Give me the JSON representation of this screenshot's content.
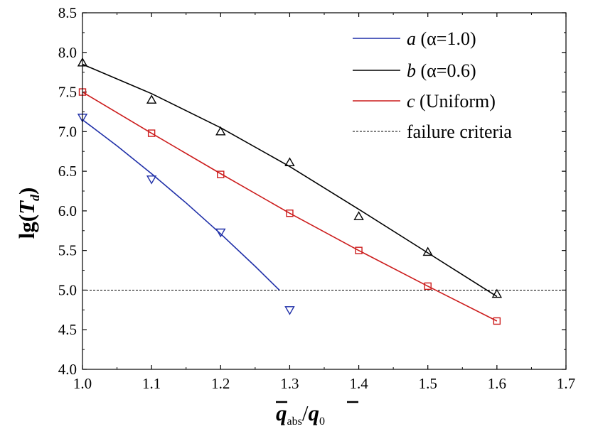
{
  "chart_data": {
    "type": "line",
    "xlabel": {
      "q": "q",
      "abs": "abs",
      "slash": "/",
      "zero": "0"
    },
    "ylabel": {
      "prefix": "lg(",
      "T": "T",
      "sub": "d",
      "suffix": ")"
    },
    "xlim": [
      1.0,
      1.7
    ],
    "ylim": [
      4.0,
      8.5
    ],
    "xticks": [
      "1.0",
      "1.1",
      "1.2",
      "1.3",
      "1.4",
      "1.5",
      "1.6",
      "1.7"
    ],
    "yticks": [
      "4.0",
      "4.5",
      "5.0",
      "5.5",
      "6.0",
      "6.5",
      "7.0",
      "7.5",
      "8.0",
      "8.5"
    ],
    "series": [
      {
        "letter": "a",
        "desc": " (α=1.0)",
        "color": "#1f2fa8",
        "marker": "triangle-down",
        "x": [
          1.0,
          1.1,
          1.2,
          1.3
        ],
        "y": [
          7.18,
          6.4,
          5.73,
          4.75
        ],
        "fit_x": [
          1.0,
          1.05,
          1.1,
          1.15,
          1.2,
          1.25,
          1.285
        ],
        "fit_y": [
          7.15,
          6.82,
          6.47,
          6.1,
          5.71,
          5.3,
          5.0
        ]
      },
      {
        "letter": "b",
        "desc": " (α=0.6)",
        "color": "#000000",
        "marker": "triangle-up",
        "x": [
          1.0,
          1.1,
          1.2,
          1.3,
          1.4,
          1.5,
          1.6
        ],
        "y": [
          7.87,
          7.4,
          7.0,
          6.61,
          5.93,
          5.48,
          4.95
        ],
        "fit_x": [
          1.0,
          1.1,
          1.2,
          1.3,
          1.4,
          1.5,
          1.6
        ],
        "fit_y": [
          7.85,
          7.48,
          7.05,
          6.56,
          6.02,
          5.47,
          4.92
        ]
      },
      {
        "letter": "c",
        "desc": " (Uniform)",
        "color": "#cc1c1c",
        "marker": "square",
        "x": [
          1.0,
          1.1,
          1.2,
          1.3,
          1.4,
          1.5,
          1.6
        ],
        "y": [
          7.5,
          6.98,
          6.46,
          5.97,
          5.5,
          5.05,
          4.61
        ],
        "fit_x": [
          1.0,
          1.1,
          1.2,
          1.3,
          1.4,
          1.5,
          1.6
        ],
        "fit_y": [
          7.5,
          6.98,
          6.47,
          5.97,
          5.5,
          5.05,
          4.61
        ]
      }
    ],
    "reference_line": {
      "label": "failure criteria",
      "y": 5.0,
      "color": "#000000",
      "style": "dashed"
    },
    "legend_position": "top-right"
  }
}
